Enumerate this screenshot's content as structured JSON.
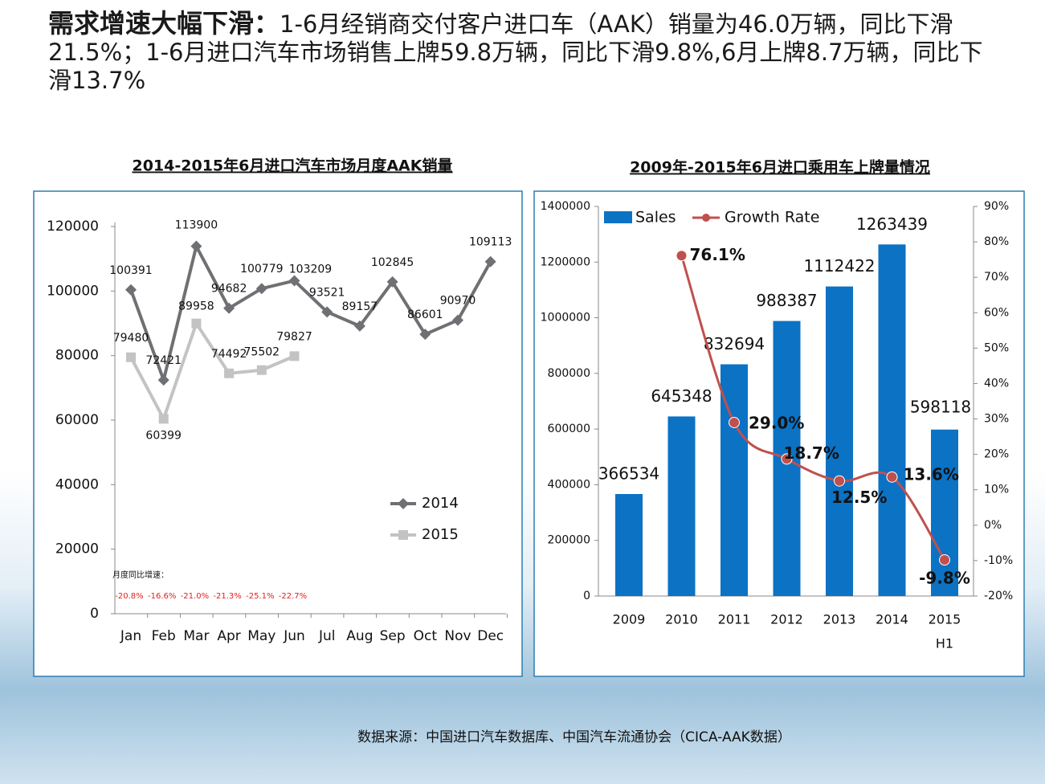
{
  "header": {
    "title_bold": "需求增速大幅下滑：",
    "text": "1-6月经销商交付客户进口车（AAK）销量为46.0万辆，同比下滑21.5%；1-6月进口汽车市场销售上牌59.8万辆，同比下滑9.8%,6月上牌8.7万辆，同比下滑13.7%"
  },
  "chart_data": [
    {
      "type": "line",
      "title": "2014-2015年6月进口汽车市场月度AAK销量",
      "categories": [
        "Jan",
        "Feb",
        "Mar",
        "Apr",
        "May",
        "Jun",
        "Jul",
        "Aug",
        "Sep",
        "Oct",
        "Nov",
        "Dec"
      ],
      "series": [
        {
          "name": "2014",
          "color": "#6e7073",
          "marker": "diamond",
          "values": [
            100391,
            72421,
            113900,
            94682,
            100779,
            103209,
            93521,
            89157,
            102845,
            86601,
            90970,
            109113
          ]
        },
        {
          "name": "2015",
          "color": "#c3c3c3",
          "marker": "square",
          "values": [
            79480,
            60399,
            89958,
            74492,
            75502,
            79827,
            null,
            null,
            null,
            null,
            null,
            null
          ]
        }
      ],
      "ylim": [
        0,
        120000
      ],
      "yticks": [
        0,
        20000,
        40000,
        60000,
        80000,
        100000,
        120000
      ],
      "legend": "right",
      "annotation": {
        "label": "月度同比增速：",
        "values": [
          "-20.8%",
          "-16.6%",
          "-21.0%",
          "-21.3%",
          "-25.1%",
          "-22.7%"
        ],
        "color": "#e02020"
      }
    },
    {
      "type": "bar-line",
      "title": "2009年-2015年6月进口乘用车上牌量情况",
      "categories": [
        "2009",
        "2010",
        "2011",
        "2012",
        "2013",
        "2014",
        "2015"
      ],
      "category_note": "H1",
      "series": [
        {
          "name": "Sales",
          "color": "#0b72c4",
          "type": "bar",
          "values": [
            366534,
            645348,
            832694,
            988387,
            1112422,
            1263439,
            598118
          ]
        },
        {
          "name": "Growth Rate",
          "color": "#c0504d",
          "type": "line",
          "axis": "y2",
          "values": [
            null,
            76.1,
            29.0,
            18.7,
            12.5,
            13.6,
            -9.8
          ],
          "value_labels": [
            null,
            "76.1%",
            "29.0%",
            "18.7%",
            "12.5%",
            "13.6%",
            "-9.8%"
          ]
        }
      ],
      "ylim": [
        0,
        1400000
      ],
      "yticks": [
        0,
        200000,
        400000,
        600000,
        800000,
        1000000,
        1200000,
        1400000
      ],
      "y2lim": [
        -20,
        90
      ],
      "y2ticks": [
        {
          "value": -20,
          "label": "-20%"
        },
        {
          "value": -10,
          "label": "-10%"
        },
        {
          "value": 0,
          "label": "0%"
        },
        {
          "value": 10,
          "label": "10%"
        },
        {
          "value": 20,
          "label": "20%"
        },
        {
          "value": 30,
          "label": "30%"
        },
        {
          "value": 40,
          "label": "40%"
        },
        {
          "value": 50,
          "label": "50%"
        },
        {
          "value": 60,
          "label": "60%"
        },
        {
          "value": 70,
          "label": "70%"
        },
        {
          "value": 80,
          "label": "80%"
        },
        {
          "value": 90,
          "label": "90%"
        }
      ],
      "legend": "top"
    }
  ],
  "source": "数据来源：中国进口汽车数据库、中国汽车流通协会（CICA-AAK数据）"
}
